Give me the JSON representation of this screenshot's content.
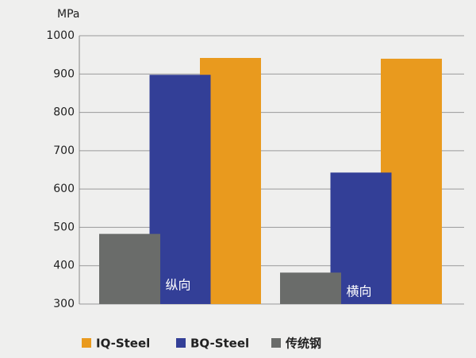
{
  "chart_data": {
    "type": "bar",
    "y_unit": "MPa",
    "categories": [
      "纵向",
      "横向"
    ],
    "series": [
      {
        "name": "IQ-Steel",
        "color": "#e99a1e",
        "values": [
          942,
          940
        ]
      },
      {
        "name": "BQ-Steel",
        "color": "#333f97",
        "values": [
          898,
          643
        ]
      },
      {
        "name": "传统钢",
        "color": "#6a6c6a",
        "values": [
          483,
          382
        ]
      }
    ],
    "ylim": [
      300,
      1000
    ],
    "yticks": [
      300,
      400,
      500,
      600,
      700,
      800,
      900,
      1000
    ],
    "grid": true
  }
}
